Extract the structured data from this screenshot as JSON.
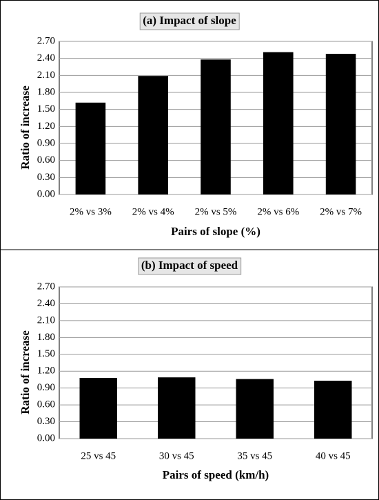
{
  "chart_data": [
    {
      "type": "bar",
      "title": "(a) Impact of slope",
      "x_label": "Pairs of slope (%)",
      "y_label": "Ratio of increase",
      "categories": [
        "2% vs 3%",
        "2% vs 4%",
        "2% vs 5%",
        "2% vs 6%",
        "2% vs 7%"
      ],
      "values": [
        1.62,
        2.09,
        2.38,
        2.51,
        2.48
      ],
      "color": "#000000",
      "ylim": [
        0,
        2.7
      ],
      "yticks": [
        {
          "value": 0,
          "label": "0.00"
        },
        {
          "value": 0.3,
          "label": "0.30"
        },
        {
          "value": 0.6,
          "label": "0.60"
        },
        {
          "value": 0.9,
          "label": "0.90"
        },
        {
          "value": 1.2,
          "label": "1.20"
        },
        {
          "value": 1.5,
          "label": "1.50"
        },
        {
          "value": 1.8,
          "label": "1.80"
        },
        {
          "value": 2.1,
          "label": "2.10"
        },
        {
          "value": 2.4,
          "label": "2.40"
        },
        {
          "value": 2.7,
          "label": "2.70"
        }
      ],
      "grid": true
    },
    {
      "type": "bar",
      "title": "(b) Impact of speed",
      "x_label": "Pairs of speed (km/h)",
      "y_label": "Ratio of increase",
      "categories": [
        "25 vs 45",
        "30 vs 45",
        "35 vs 45",
        "40 vs 45"
      ],
      "values": [
        1.08,
        1.09,
        1.06,
        1.03
      ],
      "color": "#000000",
      "ylim": [
        0,
        2.7
      ],
      "yticks": [
        {
          "value": 0,
          "label": "0.00"
        },
        {
          "value": 0.3,
          "label": "0.30"
        },
        {
          "value": 0.6,
          "label": "0.60"
        },
        {
          "value": 0.9,
          "label": "0.90"
        },
        {
          "value": 1.2,
          "label": "1.20"
        },
        {
          "value": 1.5,
          "label": "1.50"
        },
        {
          "value": 1.8,
          "label": "1.80"
        },
        {
          "value": 2.1,
          "label": "2.10"
        },
        {
          "value": 2.4,
          "label": "2.40"
        },
        {
          "value": 2.7,
          "label": "2.70"
        }
      ],
      "grid": true
    }
  ]
}
